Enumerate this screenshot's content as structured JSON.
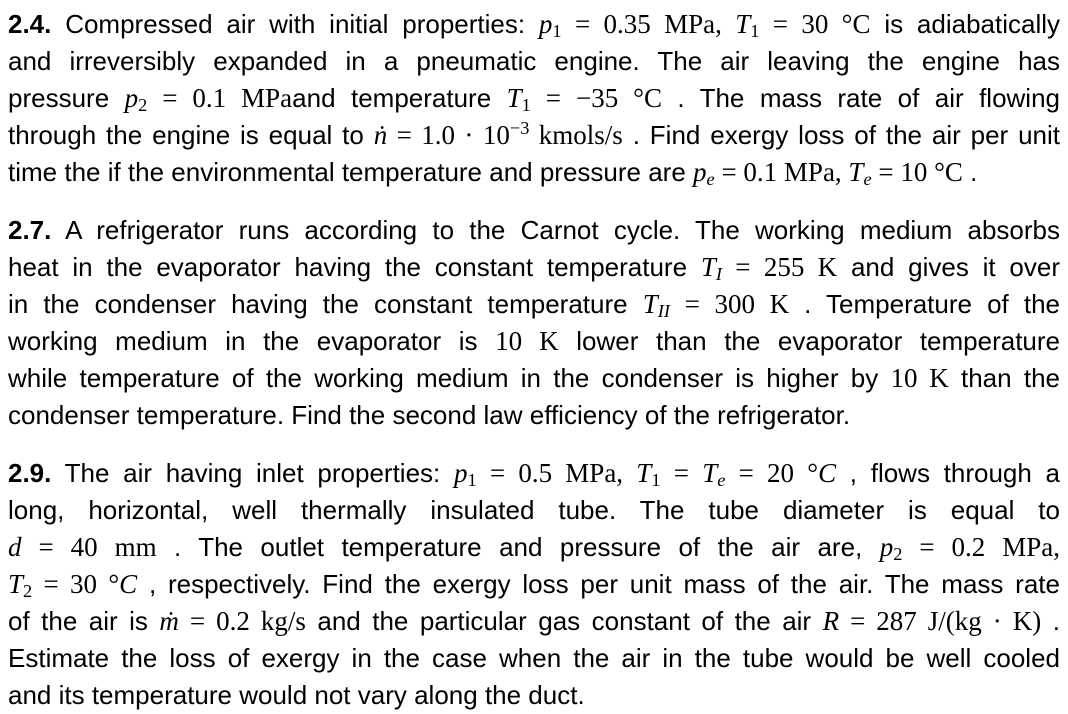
{
  "document": {
    "background": "#ffffff",
    "text_color": "#000000",
    "markup_legend": "in math runs: *x* = italic variable, ~x~ = subscript, ^x^ = superscript",
    "problems": [
      {
        "id": "2.4",
        "lines": [
          {
            "last": false,
            "runs": [
              {
                "s": "bold",
                "v": "2.4."
              },
              {
                "s": "text",
                "v": " Compressed air with initial properties: "
              },
              {
                "s": "math",
                "v": "*p*~1~ = 0.35 MPa, *T*~1~ = 30 °C"
              },
              {
                "s": "text",
                "v": " is adiabatically"
              }
            ]
          },
          {
            "last": false,
            "runs": [
              {
                "s": "text",
                "v": "and irreversibly expanded in a pneumatic engine. The air leaving the engine has"
              }
            ]
          },
          {
            "last": false,
            "runs": [
              {
                "s": "text",
                "v": "pressure "
              },
              {
                "s": "math",
                "v": "*p*~2~ = 0.1 MPa"
              },
              {
                "s": "text",
                "v": "and temperature "
              },
              {
                "s": "math",
                "v": "*T*~1~ = −35 °C"
              },
              {
                "s": "text",
                "v": " . The mass rate of air flowing"
              }
            ]
          },
          {
            "last": false,
            "runs": [
              {
                "s": "text",
                "v": "through the engine is equal to "
              },
              {
                "s": "math",
                "v": "*ṅ* = 1.0 · 10^−3^ kmols/s"
              },
              {
                "s": "text",
                "v": " . Find exergy loss of the air per unit"
              }
            ]
          },
          {
            "last": true,
            "runs": [
              {
                "s": "text",
                "v": "time the if the environmental temperature and pressure are "
              },
              {
                "s": "math",
                "v": "*p*~*e*~ = 0.1 MPa, *T*~*e*~ = 10 °C"
              },
              {
                "s": "text",
                "v": " ."
              }
            ]
          }
        ]
      },
      {
        "id": "2.7",
        "lines": [
          {
            "last": false,
            "runs": [
              {
                "s": "bold",
                "v": "2.7."
              },
              {
                "s": "text",
                "v": " A refrigerator runs according to the Carnot cycle. The working medium absorbs"
              }
            ]
          },
          {
            "last": false,
            "runs": [
              {
                "s": "text",
                "v": "heat in the evaporator having the constant temperature "
              },
              {
                "s": "math",
                "v": "*T*~*I*~ = 255 K"
              },
              {
                "s": "text",
                "v": " and gives it over"
              }
            ]
          },
          {
            "last": false,
            "runs": [
              {
                "s": "text",
                "v": "in the condenser having the constant temperature "
              },
              {
                "s": "math",
                "v": "*T*~*II*~ = 300 K"
              },
              {
                "s": "text",
                "v": " . Temperature of the"
              }
            ]
          },
          {
            "last": false,
            "runs": [
              {
                "s": "text",
                "v": "working medium in the evaporator is "
              },
              {
                "s": "math",
                "v": "10 K"
              },
              {
                "s": "text",
                "v": " lower than the evaporator temperature"
              }
            ]
          },
          {
            "last": false,
            "runs": [
              {
                "s": "text",
                "v": "while temperature of the working medium in the condenser is higher by "
              },
              {
                "s": "math",
                "v": "10 K"
              },
              {
                "s": "text",
                "v": " than the"
              }
            ]
          },
          {
            "last": true,
            "runs": [
              {
                "s": "text",
                "v": "condenser temperature. Find the second law efficiency of the refrigerator."
              }
            ]
          }
        ]
      },
      {
        "id": "2.9",
        "lines": [
          {
            "last": false,
            "runs": [
              {
                "s": "bold",
                "v": "2.9."
              },
              {
                "s": "text",
                "v": " The air having inlet properties: "
              },
              {
                "s": "math",
                "v": "*p*~1~ = 0.5 MPa, *T*~1~ = *T*~*e*~ = 20 °*C*"
              },
              {
                "s": "text",
                "v": " , flows through a"
              }
            ]
          },
          {
            "last": false,
            "runs": [
              {
                "s": "text",
                "v": "long, horizontal, well thermally insulated tube. The tube diameter is equal to"
              }
            ]
          },
          {
            "last": false,
            "runs": [
              {
                "s": "math",
                "v": "*d* = 40 mm"
              },
              {
                "s": "text",
                "v": " . The outlet temperature and pressure of the air are, "
              },
              {
                "s": "math",
                "v": "*p*~2~ = 0.2 MPa,"
              }
            ]
          },
          {
            "last": false,
            "runs": [
              {
                "s": "math",
                "v": "*T*~2~ = 30 °*C*"
              },
              {
                "s": "text",
                "v": " , respectively. Find the exergy loss per unit mass of the air. The mass rate"
              }
            ]
          },
          {
            "last": false,
            "runs": [
              {
                "s": "text",
                "v": "of the air is "
              },
              {
                "s": "math",
                "v": "*ṁ* = 0.2 kg/s"
              },
              {
                "s": "text",
                "v": " and the particular gas constant of the air "
              },
              {
                "s": "math",
                "v": "*R* = 287 J/(kg · K)"
              },
              {
                "s": "text",
                "v": " ."
              }
            ]
          },
          {
            "last": false,
            "runs": [
              {
                "s": "text",
                "v": "Estimate the loss of exergy in the case when the air in the tube would be well cooled"
              }
            ]
          },
          {
            "last": true,
            "runs": [
              {
                "s": "text",
                "v": "and its temperature would not vary along the duct."
              }
            ]
          }
        ]
      }
    ]
  }
}
